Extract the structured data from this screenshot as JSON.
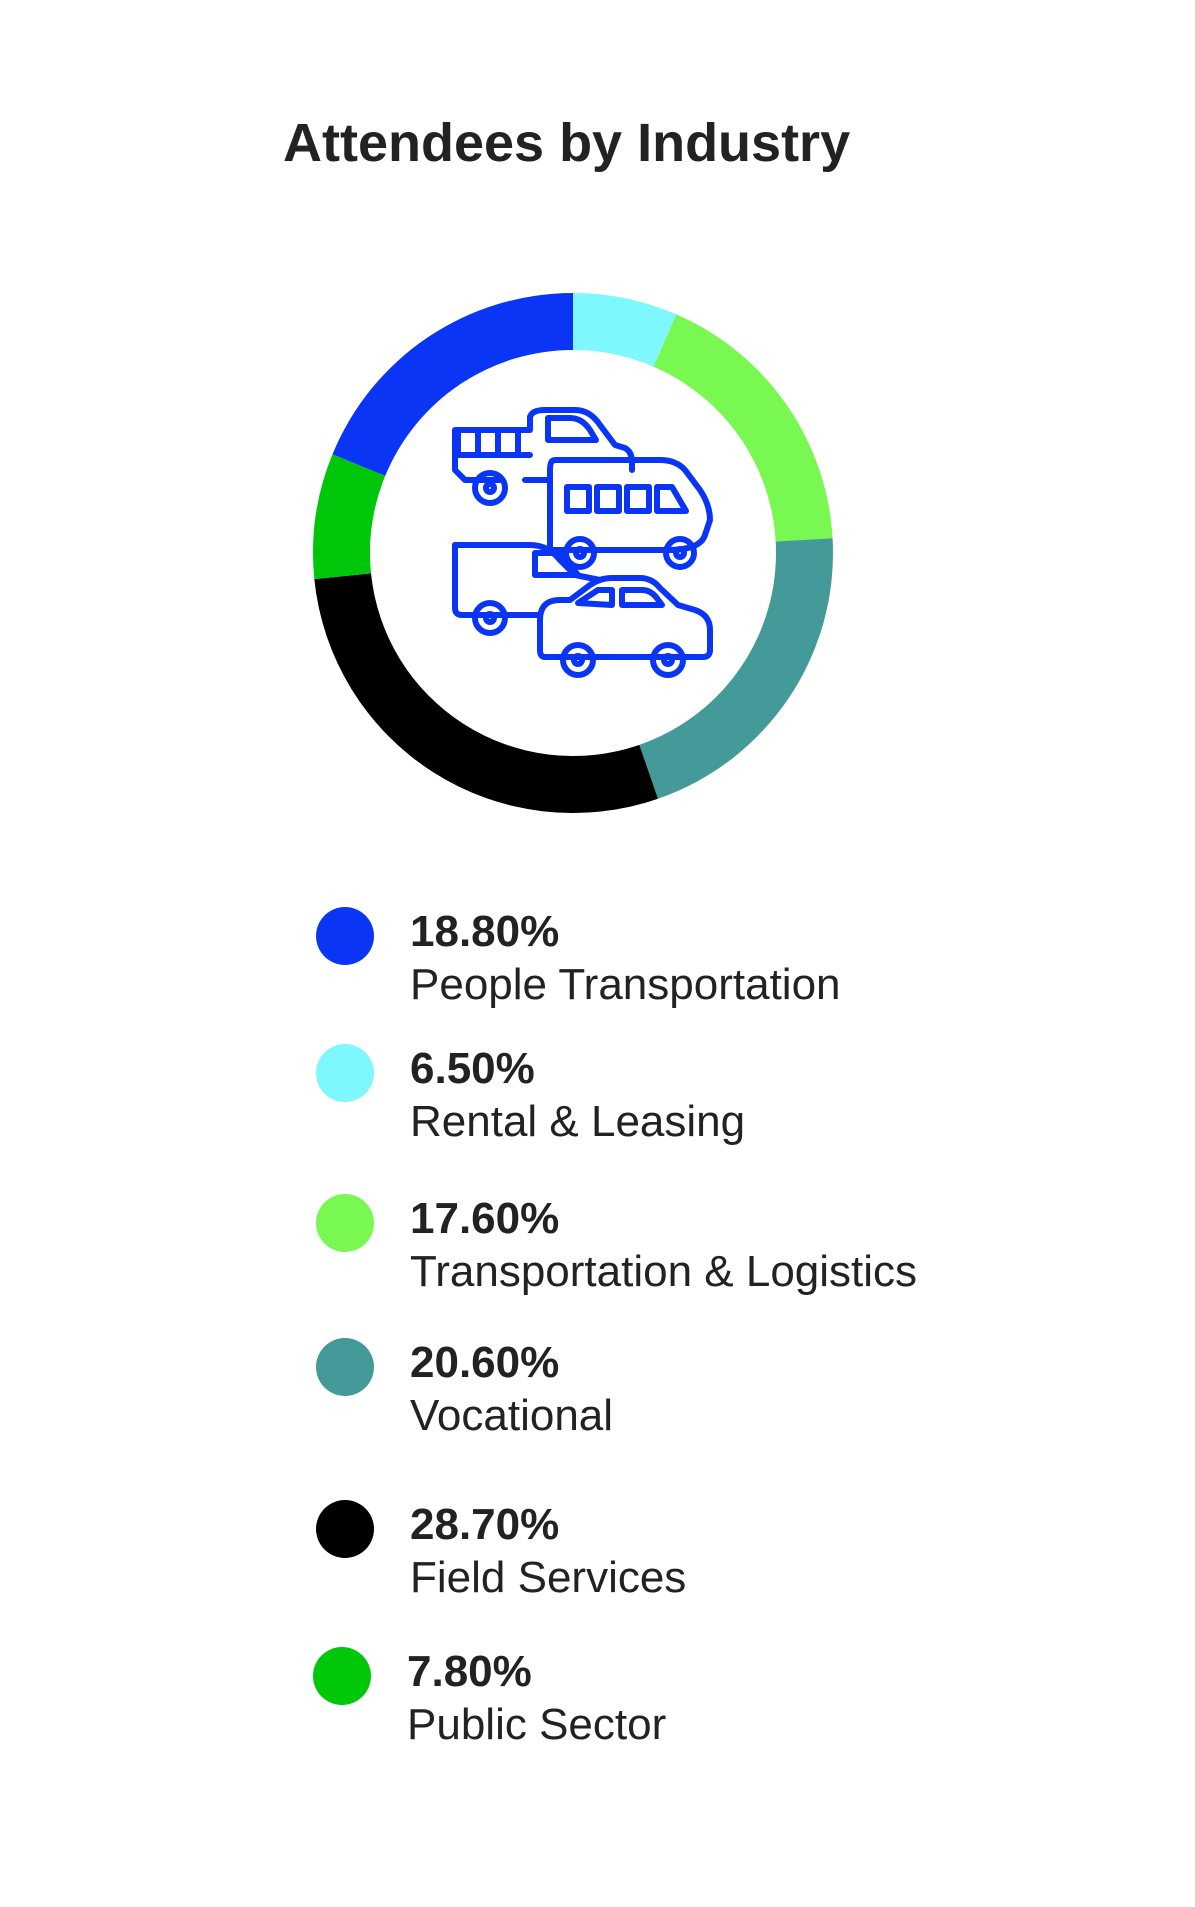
{
  "chart_data": {
    "type": "pie",
    "title": "Attendees by Industry",
    "donut": true,
    "center_icon": "vehicles-icon",
    "start_angle_deg": 0,
    "slices": [
      {
        "label": "People Transportation",
        "value": 18.8,
        "value_text": "18.80%",
        "color": "#0a35f5"
      },
      {
        "label": "Rental & Leasing",
        "value": 6.5,
        "value_text": "6.50%",
        "color": "#7ef7ff"
      },
      {
        "label": "Transportation & Logistics",
        "value": 17.6,
        "value_text": "17.60%",
        "color": "#79f852"
      },
      {
        "label": "Vocational",
        "value": 20.6,
        "value_text": "20.60%",
        "color": "#449a98"
      },
      {
        "label": "Field Services",
        "value": 28.7,
        "value_text": "28.70%",
        "color": "#000000"
      },
      {
        "label": "Public Sector",
        "value": 7.8,
        "value_text": "7.80%",
        "color": "#00c70a"
      }
    ],
    "ring_order": [
      "Rental & Leasing",
      "Transportation & Logistics",
      "Vocational",
      "Field Services",
      "Public Sector",
      "People Transportation"
    ]
  }
}
